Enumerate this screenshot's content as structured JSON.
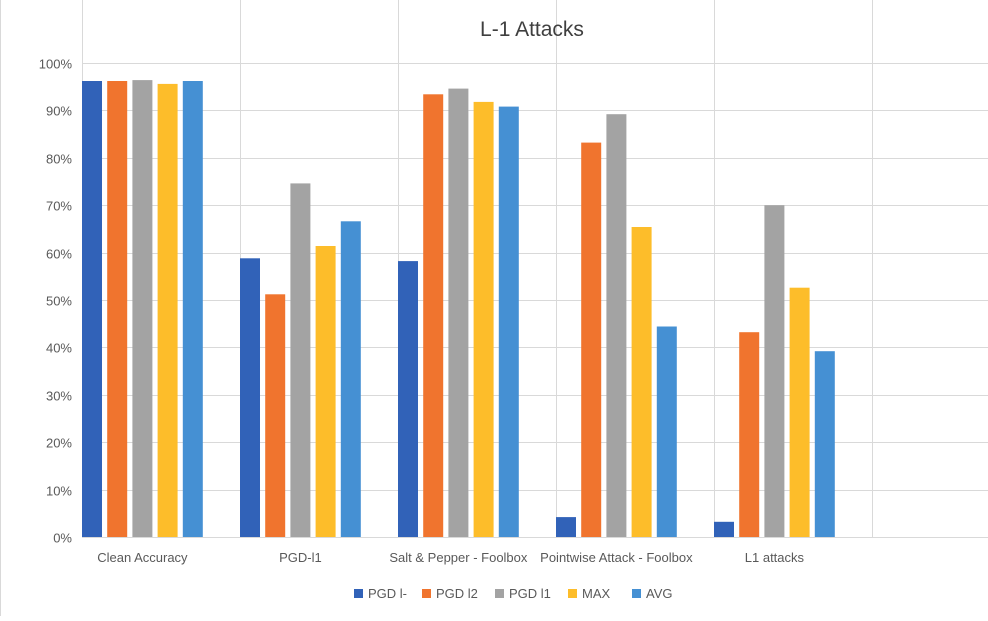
{
  "chart_data": {
    "type": "bar",
    "title": "L-1 Attacks",
    "categories": [
      "Clean Accuracy",
      "PGD-l1",
      "Salt & Pepper - Foolbox",
      "Pointwise Attack - Foolbox",
      "L1 attacks"
    ],
    "series": [
      {
        "name": "PGD l-",
        "color": "#3162B8",
        "values": [
          96.2,
          58.8,
          58.2,
          4.2,
          3.2
        ]
      },
      {
        "name": "PGD l2",
        "color": "#F0742E",
        "values": [
          96.2,
          51.2,
          93.4,
          83.2,
          43.2
        ]
      },
      {
        "name": "PGD l1",
        "color": "#A3A3A3",
        "values": [
          96.4,
          74.6,
          94.6,
          89.2,
          70.0
        ]
      },
      {
        "name": "MAX",
        "color": "#FDBD2A",
        "values": [
          95.6,
          61.4,
          91.8,
          65.4,
          52.6
        ]
      },
      {
        "name": "AVG",
        "color": "#4590D3",
        "values": [
          96.2,
          66.6,
          90.8,
          44.4,
          39.2
        ]
      }
    ],
    "ylim": [
      0,
      100
    ],
    "yticks": [
      "0%",
      "10%",
      "20%",
      "30%",
      "40%",
      "50%",
      "60%",
      "70%",
      "80%",
      "90%",
      "100%"
    ],
    "grid": true,
    "legend_position": "bottom"
  }
}
